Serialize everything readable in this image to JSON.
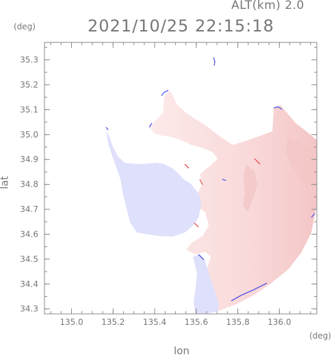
{
  "header": {
    "altitude_label": "ALT(km) 2.0",
    "timestamp": "2021/10/25 22:15:18"
  },
  "axes": {
    "y_unit": "(deg)",
    "x_unit": "(deg)",
    "x_title": "lon",
    "y_title": "lat",
    "x_ticks": [
      "135.0",
      "135.2",
      "135.4",
      "135.6",
      "135.8",
      "136.0"
    ],
    "y_ticks": [
      "35.3",
      "35.2",
      "35.1",
      "35.0",
      "34.9",
      "34.8",
      "34.7",
      "34.6",
      "34.5",
      "34.4",
      "34.3"
    ],
    "x_range": [
      134.87,
      136.18
    ],
    "y_range": [
      34.28,
      35.37
    ]
  },
  "colors": {
    "frame": "#888888",
    "approaching": "#dfe0fb",
    "receding_light": "#fbe1e1",
    "receding_strong": "#f4c8c8",
    "edge_noise_blue": "#5055e8",
    "edge_noise_red": "#e85050"
  }
}
